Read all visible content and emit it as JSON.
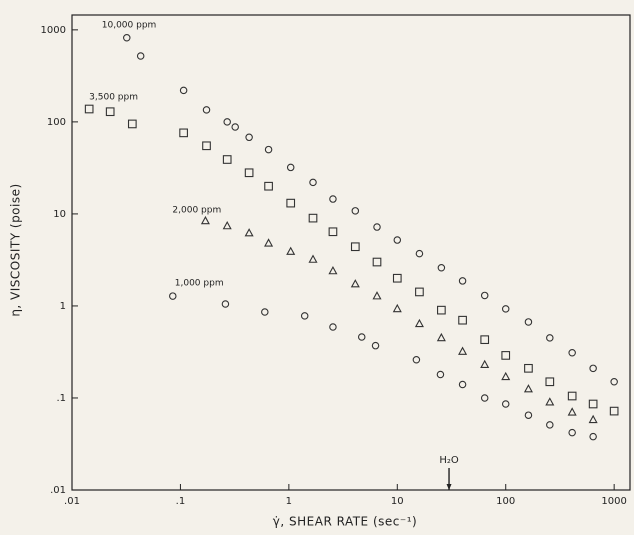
{
  "chart_data": {
    "type": "scatter",
    "xscale": "log",
    "yscale": "log",
    "x_label": "γ̇, SHEAR RATE (sec⁻¹)",
    "y_label": "η, VISCOSITY (poise)",
    "xlim": [
      0.01,
      1400
    ],
    "ylim": [
      0.01,
      1450
    ],
    "xticks": [
      {
        "value": 0.01,
        "label": ".01"
      },
      {
        "value": 0.1,
        "label": ".1"
      },
      1,
      10,
      100,
      1000
    ],
    "yticks": [
      {
        "value": 0.01,
        "label": ".01"
      },
      {
        "value": 0.1,
        "label": ".1"
      },
      1,
      10,
      100,
      1000
    ],
    "series": [
      {
        "name": "10,000 ppm",
        "color": "#333333",
        "marker": "circle",
        "x": [
          0.032,
          0.043,
          0.107,
          0.174,
          0.27,
          0.32,
          0.43,
          0.65,
          1.04,
          1.67,
          2.55,
          4.1,
          6.5,
          10,
          16,
          25.5,
          40,
          64,
          100,
          162,
          255,
          410,
          640,
          1000
        ],
        "values": [
          820,
          520,
          220,
          135,
          100,
          88,
          68,
          50,
          32,
          22,
          14.5,
          10.8,
          7.2,
          5.2,
          3.7,
          2.6,
          1.87,
          1.3,
          0.93,
          0.67,
          0.45,
          0.31,
          0.21,
          0.15
        ]
      },
      {
        "name": "3,500 ppm",
        "color": "#333333",
        "marker": "square",
        "x": [
          0.0144,
          0.0225,
          0.036,
          0.107,
          0.174,
          0.27,
          0.43,
          0.65,
          1.04,
          1.67,
          2.55,
          4.1,
          6.5,
          10,
          16,
          25.5,
          40,
          64,
          100,
          162,
          255,
          410,
          640,
          1000
        ],
        "values": [
          138,
          129,
          95,
          76,
          55,
          39,
          28,
          20,
          13.1,
          9,
          6.4,
          4.4,
          3.0,
          2.0,
          1.42,
          0.9,
          0.7,
          0.43,
          0.29,
          0.21,
          0.15,
          0.105,
          0.086,
          0.072
        ]
      },
      {
        "name": "2,000 ppm",
        "color": "#333333",
        "marker": "triangle",
        "x": [
          0.17,
          0.27,
          0.43,
          0.65,
          1.04,
          1.67,
          2.55,
          4.1,
          6.5,
          10,
          16,
          25.5,
          40,
          64,
          100,
          162,
          255,
          410,
          640
        ],
        "values": [
          8.4,
          7.4,
          6.2,
          4.8,
          3.9,
          3.2,
          2.4,
          1.73,
          1.28,
          0.93,
          0.64,
          0.45,
          0.32,
          0.23,
          0.17,
          0.125,
          0.09,
          0.07,
          0.058
        ]
      },
      {
        "name": "1,000 ppm",
        "color": "#333333",
        "marker": "circle",
        "x": [
          0.085,
          0.26,
          0.6,
          1.4,
          2.55,
          4.7,
          6.3,
          15,
          25,
          40,
          64,
          100,
          162,
          255,
          410,
          640
        ],
        "values": [
          1.28,
          1.05,
          0.86,
          0.78,
          0.59,
          0.46,
          0.37,
          0.26,
          0.18,
          0.14,
          0.1,
          0.086,
          0.065,
          0.051,
          0.042,
          0.038
        ]
      }
    ],
    "annotations": [
      {
        "text": "H₂O",
        "x": 30
      }
    ]
  }
}
